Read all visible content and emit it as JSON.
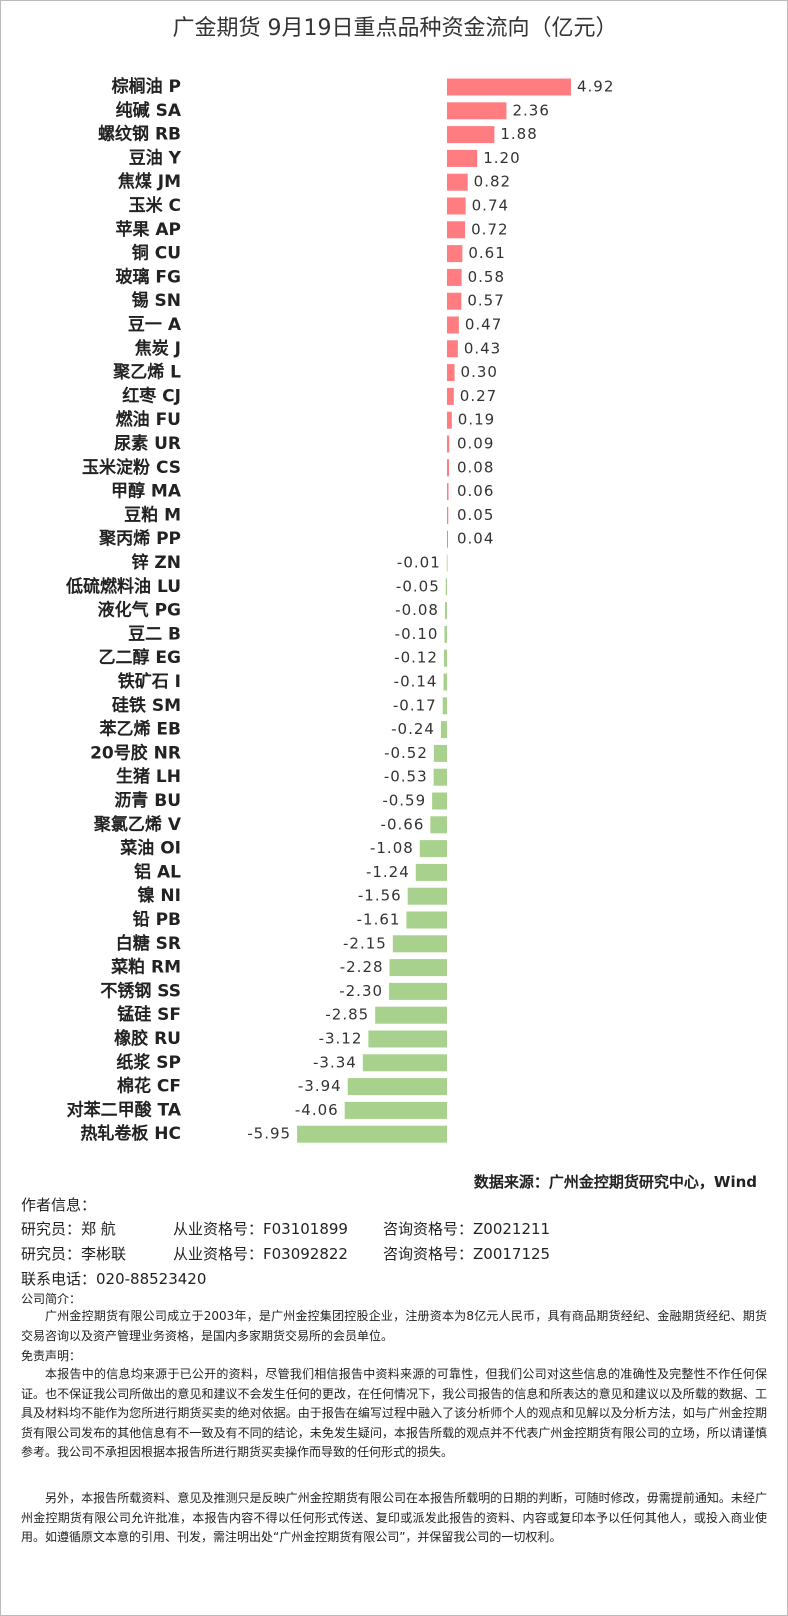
{
  "chart_data": {
    "type": "bar",
    "orientation": "horizontal",
    "title": "广金期货 9月19日重点品种资金流向（亿元）",
    "categories": [
      "棕榈油 P",
      "纯碱 SA",
      "螺纹钢 RB",
      "豆油 Y",
      "焦煤 JM",
      "玉米 C",
      "苹果 AP",
      "铜 CU",
      "玻璃 FG",
      "锡 SN",
      "豆一 A",
      "焦炭 J",
      "聚乙烯 L",
      "红枣 CJ",
      "燃油 FU",
      "尿素 UR",
      "玉米淀粉 CS",
      "甲醇 MA",
      "豆粕 M",
      "聚丙烯 PP",
      "锌 ZN",
      "低硫燃料油 LU",
      "液化气 PG",
      "豆二 B",
      "乙二醇 EG",
      "铁矿石 I",
      "硅铁 SM",
      "苯乙烯 EB",
      "20号胶 NR",
      "生猪 LH",
      "沥青 BU",
      "聚氯乙烯 V",
      "菜油 OI",
      "铝 AL",
      "镍 NI",
      "铅 PB",
      "白糖 SR",
      "菜粕 RM",
      "不锈钢 SS",
      "锰硅 SF",
      "橡胶 RU",
      "纸浆 SP",
      "棉花 CF",
      "对苯二甲酸 TA",
      "热轧卷板 HC"
    ],
    "values": [
      4.92,
      2.36,
      1.88,
      1.2,
      0.82,
      0.74,
      0.72,
      0.61,
      0.58,
      0.57,
      0.47,
      0.43,
      0.3,
      0.27,
      0.19,
      0.09,
      0.08,
      0.06,
      0.05,
      0.04,
      -0.01,
      -0.05,
      -0.08,
      -0.1,
      -0.12,
      -0.14,
      -0.17,
      -0.24,
      -0.52,
      -0.53,
      -0.59,
      -0.66,
      -1.08,
      -1.24,
      -1.56,
      -1.61,
      -2.15,
      -2.28,
      -2.3,
      -2.85,
      -3.12,
      -3.34,
      -3.94,
      -4.06,
      -5.95
    ],
    "value_labels": [
      "4.92",
      "2.36",
      "1.88",
      "1.20",
      "0.82",
      "0.74",
      "0.72",
      "0.61",
      "0.58",
      "0.57",
      "0.47",
      "0.43",
      "0.30",
      "0.27",
      "0.19",
      "0.09",
      "0.08",
      "0.06",
      "0.05",
      "0.04",
      "-0.01",
      "-0.05",
      "-0.08",
      "-0.10",
      "-0.12",
      "-0.14",
      "-0.17",
      "-0.24",
      "-0.52",
      "-0.53",
      "-0.59",
      "-0.66",
      "-1.08",
      "-1.24",
      "-1.56",
      "-1.61",
      "-2.15",
      "-2.28",
      "-2.30",
      "-2.85",
      "-3.12",
      "-3.34",
      "-3.94",
      "-4.06",
      "-5.95"
    ],
    "positive_color": "#ff7c80",
    "negative_color": "#a9d18e"
  },
  "footer": {
    "source": "数据来源：广州金控期货研究中心，Wind",
    "author_heading": "作者信息：",
    "authors": [
      {
        "role": "研究员：郑 航",
        "qualification": "从业资格号：F03101899",
        "consult": "咨询资格号：Z0021211"
      },
      {
        "role": "研究员：李彬联",
        "qualification": "从业资格号：F03092822",
        "consult": "咨询资格号：Z0017125"
      }
    ],
    "phone": "联系电话：020-88523420",
    "company_heading": "公司简介：",
    "company_text": "广州金控期货有限公司成立于2003年，是广州金控集团控股企业，注册资本为8亿元人民币，具有商品期货经纪、金融期货经纪、期货交易咨询以及资产管理业务资格，是国内多家期货交易所的会员单位。",
    "disclaimer_heading": "免责声明：",
    "disclaimer": [
      "本报告中的信息均来源于已公开的资料，尽管我们相信报告中资料来源的可靠性，但我们公司对这些信息的准确性及完整性不作任何保证。也不保证我公司所做出的意见和建议不会发生任何的更改，在任何情况下，我公司报告的信息和所表达的意见和建议以及所载的数据、工具及材料均不能作为您所进行期货买卖的绝对依据。由于报告在编写过程中融入了该分析师个人的观点和见解以及分析方法，如与广州金控期货有限公司发布的其他信息有不一致及有不同的结论，未免发生疑问，本报告所载的观点并不代表广州金控期货有限公司的立场，所以请谨慎参考。我公司不承担因根据本报告所进行期货买卖操作而导致的任何形式的损失。",
      "另外，本报告所载资料、意见及推测只是反映广州金控期货有限公司在本报告所载明的日期的判断，可随时修改，毋需提前通知。未经广州金控期货有限公司允许批准，本报告内容不得以任何形式传送、复印或派发此报告的资料、内容或复印本予以任何其他人，或投入商业使用。如遵循原文本意的引用、刊发，需注明出处“广州金控期货有限公司”，并保留我公司的一切权利。"
    ]
  }
}
